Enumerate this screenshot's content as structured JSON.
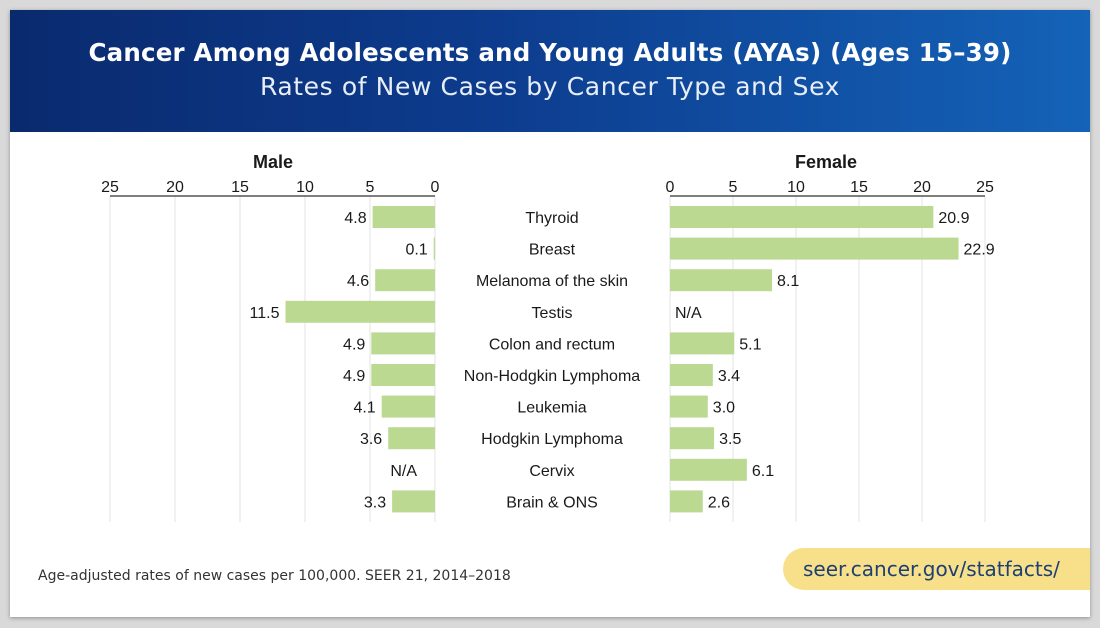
{
  "header": {
    "title": "Cancer Among Adolescents and Young Adults (AYAs) (Ages 15–39)",
    "subtitle": "Rates of New Cases by Cancer Type and Sex"
  },
  "footer": {
    "footnote": "Age-adjusted rates of new cases per 100,000. SEER 21, 2014–2018",
    "source_link": "seer.cancer.gov/statfacts/"
  },
  "colors": {
    "bar": "#bcd992",
    "grid": "#e3e3e3",
    "banner_start": "#0a2a6e",
    "banner_end": "#1463b8",
    "pill": "#f8df8a"
  },
  "chart_data": {
    "type": "bar",
    "title": "Rates of New Cases by Cancer Type and Sex",
    "categories": [
      "Thyroid",
      "Breast",
      "Melanoma of the skin",
      "Testis",
      "Colon and rectum",
      "Non-Hodgkin Lymphoma",
      "Leukemia",
      "Hodgkin Lymphoma",
      "Cervix",
      "Brain & ONS"
    ],
    "xlim": [
      0,
      25
    ],
    "ticks": [
      0,
      5,
      10,
      15,
      20,
      25
    ],
    "grid": true,
    "series": [
      {
        "name": "Male",
        "direction": "left",
        "values": [
          4.8,
          0.1,
          4.6,
          11.5,
          4.9,
          4.9,
          4.1,
          3.6,
          null,
          3.3
        ],
        "labels": [
          "4.8",
          "0.1",
          "4.6",
          "11.5",
          "4.9",
          "4.9",
          "4.1",
          "3.6",
          "N/A",
          "3.3"
        ]
      },
      {
        "name": "Female",
        "direction": "right",
        "values": [
          20.9,
          22.9,
          8.1,
          null,
          5.1,
          3.4,
          3.0,
          3.5,
          6.1,
          2.6
        ],
        "labels": [
          "20.9",
          "22.9",
          "8.1",
          "N/A",
          "5.1",
          "3.4",
          "3.0",
          "3.5",
          "6.1",
          "2.6"
        ]
      }
    ]
  }
}
